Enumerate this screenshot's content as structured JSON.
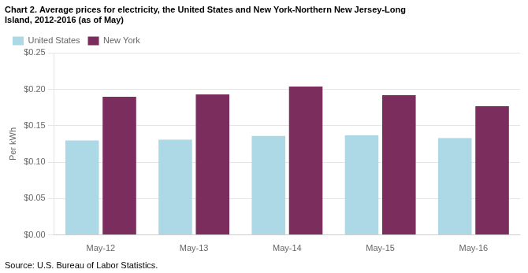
{
  "chart_data": {
    "type": "bar",
    "title": [
      "Chart 2. Average prices for electricity, the United States and New York-Northern New Jersey-Long",
      "Island, 2012-2016 (as of May)"
    ],
    "y_label": "Per kWh",
    "annotations": [
      "Source: U.S. Bureau of Labor Statistics."
    ],
    "categories": [
      "May-12",
      "May-13",
      "May-14",
      "May-15",
      "May-16"
    ],
    "series": [
      {
        "name": "United States",
        "color": "#ADD8E6",
        "values": [
          0.13,
          0.131,
          0.136,
          0.137,
          0.133
        ]
      },
      {
        "name": "New York",
        "color": "#7B2D5E",
        "values": [
          0.19,
          0.193,
          0.204,
          0.192,
          0.177
        ]
      }
    ],
    "ylim": [
      0,
      0.25
    ],
    "yticks": [
      {
        "value": 0.0,
        "label": "$0.00"
      },
      {
        "value": 0.05,
        "label": "$0.05"
      },
      {
        "value": 0.1,
        "label": "$0.10"
      },
      {
        "value": 0.15,
        "label": "$0.15"
      },
      {
        "value": 0.2,
        "label": "$0.20"
      },
      {
        "value": 0.25,
        "label": "$0.25"
      }
    ],
    "grid": true,
    "legend": "upper left"
  }
}
